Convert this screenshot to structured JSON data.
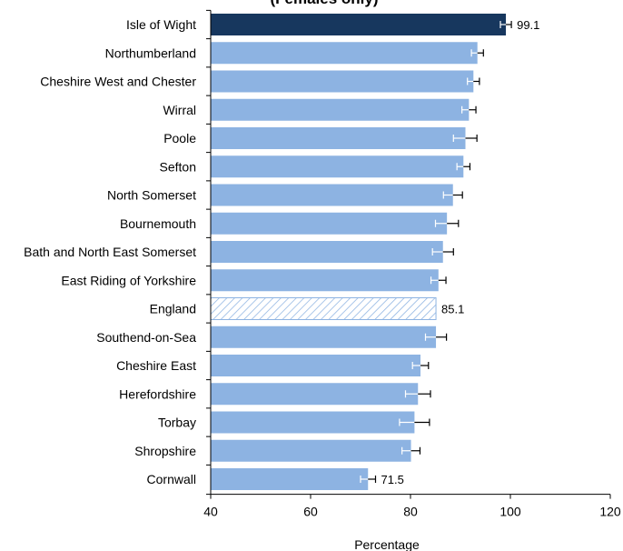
{
  "chart_data": {
    "type": "bar",
    "orientation": "horizontal",
    "title": "(Females only)",
    "xlabel": "Percentage",
    "ylabel": "",
    "xlim": [
      40,
      120
    ],
    "xticks": [
      40,
      60,
      80,
      100,
      120
    ],
    "grid": false,
    "legend": "none",
    "categories": [
      "Isle of Wight",
      "Northumberland",
      "Cheshire West and Chester",
      "Wirral",
      "Poole",
      "Sefton",
      "North Somerset",
      "Bournemouth",
      "Bath and North East Somerset",
      "East Riding of Yorkshire",
      "England",
      "Southend-on-Sea",
      "Cheshire East",
      "Herefordshire",
      "Torbay",
      "Shropshire",
      "Cornwall"
    ],
    "values": [
      99.1,
      93.4,
      92.6,
      91.7,
      91.0,
      90.6,
      88.5,
      87.3,
      86.5,
      85.6,
      85.1,
      85.1,
      82.0,
      81.5,
      80.8,
      80.1,
      71.5
    ],
    "error_low": [
      98.0,
      92.2,
      91.4,
      90.3,
      88.6,
      89.3,
      86.6,
      85.0,
      84.4,
      84.1,
      null,
      83.0,
      80.4,
      79.0,
      77.8,
      78.3,
      70.0
    ],
    "error_high": [
      100.2,
      94.6,
      93.8,
      93.1,
      93.3,
      91.9,
      90.4,
      89.6,
      88.6,
      87.1,
      null,
      87.2,
      83.6,
      84.0,
      83.8,
      81.9,
      73.0
    ],
    "value_labels": [
      "99.1",
      "",
      "",
      "",
      "",
      "",
      "",
      "",
      "",
      "",
      "85.1",
      "",
      "",
      "",
      "",
      "",
      "71.5"
    ],
    "bar_styles": [
      "highlight",
      "normal",
      "normal",
      "normal",
      "normal",
      "normal",
      "normal",
      "normal",
      "normal",
      "normal",
      "hatched",
      "normal",
      "normal",
      "normal",
      "normal",
      "normal",
      "normal"
    ],
    "colors": {
      "highlight": "#17375e",
      "normal": "#8db3e2",
      "hatched_stroke": "#8db3e2",
      "error_bar": "#000000",
      "error_bar_inner": "#ffffff",
      "axis": "#000000"
    }
  }
}
